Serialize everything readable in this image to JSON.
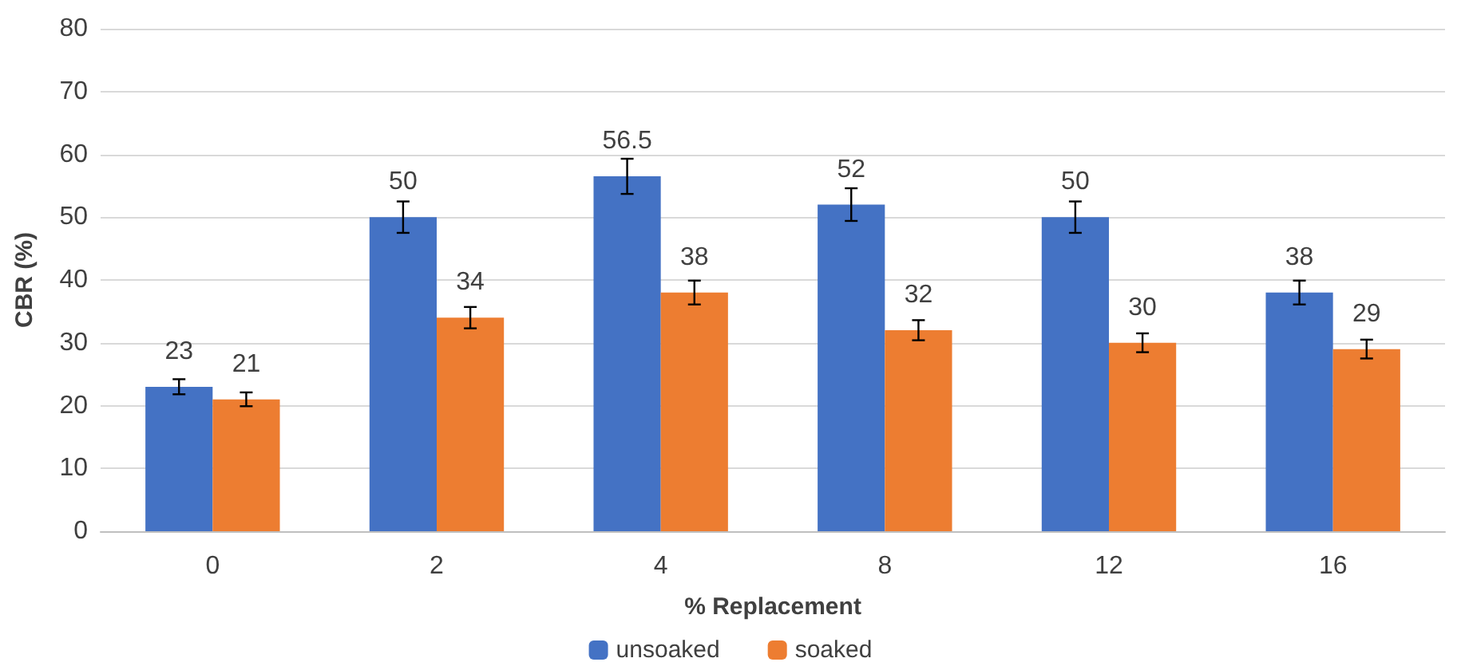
{
  "chart_data": {
    "type": "bar",
    "xlabel": "% Replacement",
    "ylabel": "CBR (%)",
    "categories": [
      "0",
      "2",
      "4",
      "8",
      "12",
      "16"
    ],
    "series": [
      {
        "name": "unsoaked",
        "color": "#4472c4",
        "values": [
          23,
          50,
          56.5,
          52,
          50,
          38
        ],
        "errors": [
          1.2,
          2.5,
          2.8,
          2.6,
          2.5,
          1.9
        ]
      },
      {
        "name": "soaked",
        "color": "#ed7d31",
        "values": [
          21,
          34,
          38,
          32,
          30,
          29
        ],
        "errors": [
          1.1,
          1.7,
          1.9,
          1.6,
          1.5,
          1.5
        ]
      }
    ],
    "ylim": [
      0,
      80
    ],
    "yticks": [
      0,
      10,
      20,
      30,
      40,
      50,
      60,
      70,
      80
    ],
    "grid": "y",
    "legend": "bottom",
    "data_labels": true
  }
}
